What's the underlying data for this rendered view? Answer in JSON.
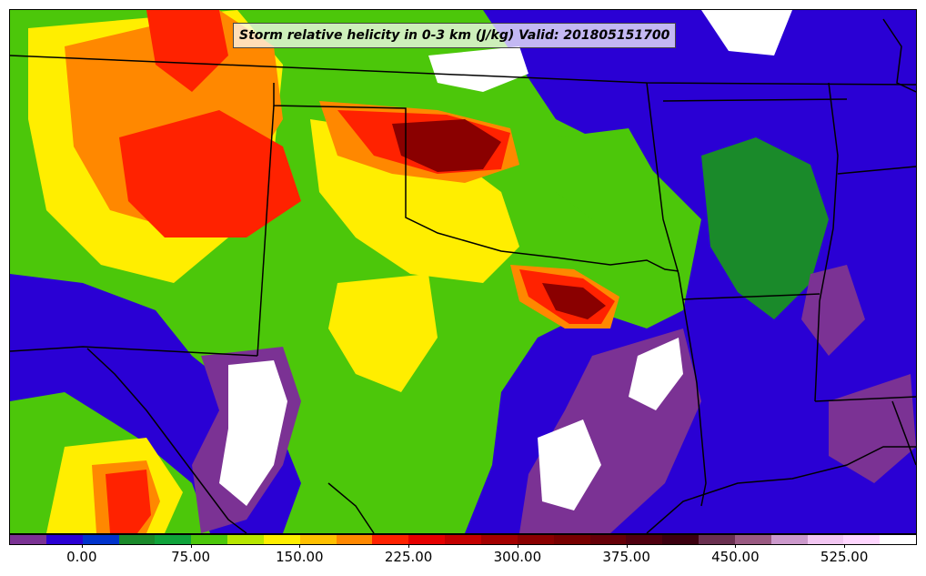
{
  "title": "Storm relative helicity in 0-3 km (J/kg) Valid: 201805151700",
  "colorbar": {
    "colors": [
      "#7b3294",
      "#2a00d4",
      "#0033cc",
      "#1a8a2a",
      "#0fa33a",
      "#4cc70a",
      "#b8e600",
      "#ffee00",
      "#ffc000",
      "#ff8800",
      "#ff2200",
      "#e60000",
      "#c40000",
      "#a40000",
      "#8a0000",
      "#780000",
      "#660008",
      "#500010",
      "#3c0010",
      "#6a3050",
      "#9a5a82",
      "#cc99cc",
      "#f2c6f2",
      "#ffd6ff",
      "#ffffff"
    ],
    "tick_labels": [
      "0.00",
      "75.00",
      "150.00",
      "225.00",
      "300.00",
      "375.00",
      "450.00",
      "525.00"
    ]
  },
  "map_colors": {
    "purple": "#7b3294",
    "blue": "#2a00d4",
    "darkgreen": "#1a8a2a",
    "green": "#4cc70a",
    "yellow": "#ffee00",
    "orange": "#ff8800",
    "red": "#ff2200",
    "darkred": "#8a0000",
    "white": "#ffffff",
    "border": "#000000"
  }
}
